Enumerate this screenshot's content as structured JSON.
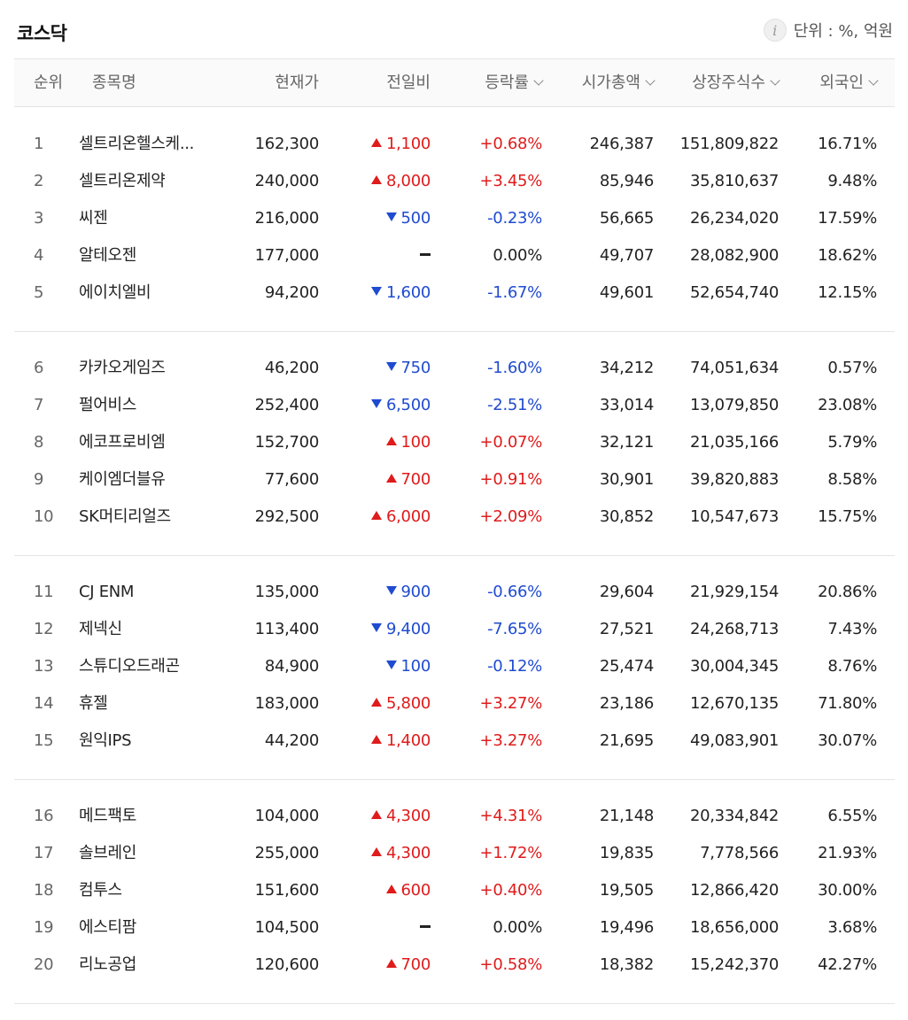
{
  "title": "코스닥",
  "unit_label": "단위 : %, 억원",
  "columns": {
    "rank": "순위",
    "name": "종목명",
    "price": "현재가",
    "diff": "전일비",
    "rate": "등락률",
    "cap": "시가총액",
    "shares": "상장주식수",
    "foreign": "외국인"
  },
  "colors": {
    "up": "#e01b1b",
    "down": "#1f4bd0"
  },
  "rows": [
    {
      "rank": "1",
      "name": "셀트리온헬스케...",
      "price": "162,300",
      "dir": "up",
      "diff": "1,100",
      "rate": "+0.68%",
      "cap": "246,387",
      "shares": "151,809,822",
      "foreign": "16.71%"
    },
    {
      "rank": "2",
      "name": "셀트리온제약",
      "price": "240,000",
      "dir": "up",
      "diff": "8,000",
      "rate": "+3.45%",
      "cap": "85,946",
      "shares": "35,810,637",
      "foreign": "9.48%"
    },
    {
      "rank": "3",
      "name": "씨젠",
      "price": "216,000",
      "dir": "down",
      "diff": "500",
      "rate": "-0.23%",
      "cap": "56,665",
      "shares": "26,234,020",
      "foreign": "17.59%"
    },
    {
      "rank": "4",
      "name": "알테오젠",
      "price": "177,000",
      "dir": "flat",
      "diff": "",
      "rate": "0.00%",
      "cap": "49,707",
      "shares": "28,082,900",
      "foreign": "18.62%"
    },
    {
      "rank": "5",
      "name": "에이치엘비",
      "price": "94,200",
      "dir": "down",
      "diff": "1,600",
      "rate": "-1.67%",
      "cap": "49,601",
      "shares": "52,654,740",
      "foreign": "12.15%"
    },
    {
      "rank": "6",
      "name": "카카오게임즈",
      "price": "46,200",
      "dir": "down",
      "diff": "750",
      "rate": "-1.60%",
      "cap": "34,212",
      "shares": "74,051,634",
      "foreign": "0.57%"
    },
    {
      "rank": "7",
      "name": "펄어비스",
      "price": "252,400",
      "dir": "down",
      "diff": "6,500",
      "rate": "-2.51%",
      "cap": "33,014",
      "shares": "13,079,850",
      "foreign": "23.08%"
    },
    {
      "rank": "8",
      "name": "에코프로비엠",
      "price": "152,700",
      "dir": "up",
      "diff": "100",
      "rate": "+0.07%",
      "cap": "32,121",
      "shares": "21,035,166",
      "foreign": "5.79%"
    },
    {
      "rank": "9",
      "name": "케이엠더블유",
      "price": "77,600",
      "dir": "up",
      "diff": "700",
      "rate": "+0.91%",
      "cap": "30,901",
      "shares": "39,820,883",
      "foreign": "8.58%"
    },
    {
      "rank": "10",
      "name": "SK머티리얼즈",
      "price": "292,500",
      "dir": "up",
      "diff": "6,000",
      "rate": "+2.09%",
      "cap": "30,852",
      "shares": "10,547,673",
      "foreign": "15.75%"
    },
    {
      "rank": "11",
      "name": "CJ ENM",
      "price": "135,000",
      "dir": "down",
      "diff": "900",
      "rate": "-0.66%",
      "cap": "29,604",
      "shares": "21,929,154",
      "foreign": "20.86%"
    },
    {
      "rank": "12",
      "name": "제넥신",
      "price": "113,400",
      "dir": "down",
      "diff": "9,400",
      "rate": "-7.65%",
      "cap": "27,521",
      "shares": "24,268,713",
      "foreign": "7.43%"
    },
    {
      "rank": "13",
      "name": "스튜디오드래곤",
      "price": "84,900",
      "dir": "down",
      "diff": "100",
      "rate": "-0.12%",
      "cap": "25,474",
      "shares": "30,004,345",
      "foreign": "8.76%"
    },
    {
      "rank": "14",
      "name": "휴젤",
      "price": "183,000",
      "dir": "up",
      "diff": "5,800",
      "rate": "+3.27%",
      "cap": "23,186",
      "shares": "12,670,135",
      "foreign": "71.80%"
    },
    {
      "rank": "15",
      "name": "원익IPS",
      "price": "44,200",
      "dir": "up",
      "diff": "1,400",
      "rate": "+3.27%",
      "cap": "21,695",
      "shares": "49,083,901",
      "foreign": "30.07%"
    },
    {
      "rank": "16",
      "name": "메드팩토",
      "price": "104,000",
      "dir": "up",
      "diff": "4,300",
      "rate": "+4.31%",
      "cap": "21,148",
      "shares": "20,334,842",
      "foreign": "6.55%"
    },
    {
      "rank": "17",
      "name": "솔브레인",
      "price": "255,000",
      "dir": "up",
      "diff": "4,300",
      "rate": "+1.72%",
      "cap": "19,835",
      "shares": "7,778,566",
      "foreign": "21.93%"
    },
    {
      "rank": "18",
      "name": "컴투스",
      "price": "151,600",
      "dir": "up",
      "diff": "600",
      "rate": "+0.40%",
      "cap": "19,505",
      "shares": "12,866,420",
      "foreign": "30.00%"
    },
    {
      "rank": "19",
      "name": "에스티팜",
      "price": "104,500",
      "dir": "flat",
      "diff": "",
      "rate": "0.00%",
      "cap": "19,496",
      "shares": "18,656,000",
      "foreign": "3.68%"
    },
    {
      "rank": "20",
      "name": "리노공업",
      "price": "120,600",
      "dir": "up",
      "diff": "700",
      "rate": "+0.58%",
      "cap": "18,382",
      "shares": "15,242,370",
      "foreign": "42.27%"
    }
  ]
}
